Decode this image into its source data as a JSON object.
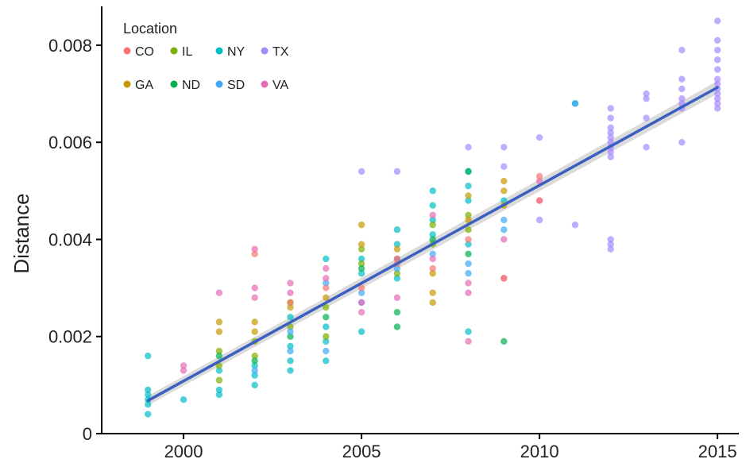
{
  "chart_data": {
    "type": "scatter",
    "title": "",
    "xlabel": "",
    "ylabel": "Distance",
    "xlim": [
      1997.7,
      2015.6
    ],
    "ylim": [
      0,
      0.0088
    ],
    "xticks": [
      2000,
      2005,
      2010,
      2015
    ],
    "xtick_labels": [
      "2000",
      "2005",
      "2010",
      "2015"
    ],
    "yticks": [
      0,
      0.002,
      0.004,
      0.006,
      0.008
    ],
    "ytick_labels": [
      "0",
      "0.002",
      "0.004",
      "0.006",
      "0.008"
    ],
    "grid": false,
    "legend": {
      "title": "Location",
      "placement": "top-left",
      "entries": [
        {
          "name": "CO",
          "color": "#F8766D"
        },
        {
          "name": "IL",
          "color": "#7CAE00"
        },
        {
          "name": "NY",
          "color": "#00BFC4"
        },
        {
          "name": "TX",
          "color": "#A58AFF"
        },
        {
          "name": "GA",
          "color": "#C49A00"
        },
        {
          "name": "ND",
          "color": "#00B050"
        },
        {
          "name": "SD",
          "color": "#3FA9F5"
        },
        {
          "name": "VA",
          "color": "#E76BB4"
        }
      ]
    },
    "trend_line": {
      "x": [
        1999,
        2015
      ],
      "y": [
        0.00068,
        0.00713
      ],
      "color": "#3a5fc1",
      "ci_color": "#cfcfcf"
    },
    "series": [
      {
        "name": "NY",
        "color": "#00BFC4",
        "points": [
          [
            1999,
            0.0016
          ],
          [
            1999,
            0.0009
          ],
          [
            1999,
            0.0008
          ],
          [
            1999,
            0.0007
          ],
          [
            1999,
            0.0006
          ],
          [
            1999,
            0.0004
          ],
          [
            2000,
            0.0007
          ],
          [
            2001,
            0.0013
          ],
          [
            2001,
            0.0009
          ],
          [
            2001,
            0.0008
          ],
          [
            2002,
            0.0014
          ],
          [
            2002,
            0.0012
          ],
          [
            2002,
            0.001
          ],
          [
            2003,
            0.0018
          ],
          [
            2003,
            0.0015
          ],
          [
            2003,
            0.0013
          ],
          [
            2003,
            0.0024
          ],
          [
            2004,
            0.0036
          ],
          [
            2004,
            0.0022
          ],
          [
            2004,
            0.0019
          ],
          [
            2004,
            0.0015
          ],
          [
            2005,
            0.0036
          ],
          [
            2005,
            0.0033
          ],
          [
            2005,
            0.0021
          ],
          [
            2006,
            0.0042
          ],
          [
            2006,
            0.0039
          ],
          [
            2006,
            0.0032
          ],
          [
            2007,
            0.005
          ],
          [
            2007,
            0.0047
          ],
          [
            2007,
            0.0044
          ],
          [
            2007,
            0.0041
          ],
          [
            2008,
            0.0054
          ],
          [
            2008,
            0.0051
          ],
          [
            2008,
            0.0048
          ],
          [
            2008,
            0.0039
          ],
          [
            2008,
            0.0021
          ],
          [
            2009,
            0.0048
          ],
          [
            2011,
            0.0068
          ]
        ]
      },
      {
        "name": "IL",
        "color": "#7CAE00",
        "points": [
          [
            2001,
            0.0017
          ],
          [
            2001,
            0.0014
          ],
          [
            2001,
            0.0011
          ],
          [
            2002,
            0.0019
          ],
          [
            2002,
            0.0016
          ],
          [
            2003,
            0.0027
          ],
          [
            2003,
            0.0022
          ],
          [
            2004,
            0.0026
          ],
          [
            2004,
            0.002
          ],
          [
            2005,
            0.0038
          ],
          [
            2005,
            0.0035
          ],
          [
            2006,
            0.0036
          ],
          [
            2006,
            0.0033
          ],
          [
            2007,
            0.0043
          ],
          [
            2007,
            0.0039
          ],
          [
            2008,
            0.0045
          ],
          [
            2008,
            0.0042
          ]
        ]
      },
      {
        "name": "GA",
        "color": "#C49A00",
        "points": [
          [
            2001,
            0.0023
          ],
          [
            2001,
            0.0021
          ],
          [
            2002,
            0.0023
          ],
          [
            2002,
            0.0021
          ],
          [
            2003,
            0.0026
          ],
          [
            2004,
            0.0028
          ],
          [
            2005,
            0.0043
          ],
          [
            2005,
            0.0039
          ],
          [
            2006,
            0.0038
          ],
          [
            2007,
            0.0033
          ],
          [
            2007,
            0.0029
          ],
          [
            2007,
            0.0027
          ],
          [
            2008,
            0.0049
          ],
          [
            2008,
            0.0044
          ],
          [
            2009,
            0.0052
          ],
          [
            2009,
            0.005
          ],
          [
            2009,
            0.0047
          ]
        ]
      },
      {
        "name": "ND",
        "color": "#00B050",
        "points": [
          [
            2001,
            0.0016
          ],
          [
            2002,
            0.0015
          ],
          [
            2003,
            0.002
          ],
          [
            2004,
            0.0024
          ],
          [
            2005,
            0.0034
          ],
          [
            2006,
            0.0025
          ],
          [
            2006,
            0.0022
          ],
          [
            2007,
            0.004
          ],
          [
            2008,
            0.0054
          ],
          [
            2008,
            0.0037
          ],
          [
            2009,
            0.0019
          ]
        ]
      },
      {
        "name": "SD",
        "color": "#3FA9F5",
        "points": [
          [
            2002,
            0.0013
          ],
          [
            2003,
            0.0021
          ],
          [
            2003,
            0.0017
          ],
          [
            2004,
            0.0031
          ],
          [
            2004,
            0.0017
          ],
          [
            2005,
            0.0029
          ],
          [
            2005,
            0.0027
          ],
          [
            2006,
            0.0034
          ],
          [
            2007,
            0.0037
          ],
          [
            2008,
            0.0035
          ],
          [
            2008,
            0.0033
          ],
          [
            2009,
            0.0044
          ],
          [
            2009,
            0.0042
          ],
          [
            2011,
            0.0068
          ]
        ]
      },
      {
        "name": "VA",
        "color": "#E76BB4",
        "points": [
          [
            2000,
            0.0014
          ],
          [
            2000,
            0.0013
          ],
          [
            2001,
            0.0029
          ],
          [
            2002,
            0.0038
          ],
          [
            2002,
            0.003
          ],
          [
            2002,
            0.0028
          ],
          [
            2003,
            0.0031
          ],
          [
            2003,
            0.0029
          ],
          [
            2004,
            0.0034
          ],
          [
            2004,
            0.0032
          ],
          [
            2005,
            0.0027
          ],
          [
            2005,
            0.0025
          ],
          [
            2006,
            0.0036
          ],
          [
            2006,
            0.0028
          ],
          [
            2007,
            0.0045
          ],
          [
            2007,
            0.0036
          ],
          [
            2008,
            0.0031
          ],
          [
            2008,
            0.0029
          ],
          [
            2008,
            0.0019
          ],
          [
            2009,
            0.004
          ],
          [
            2009,
            0.0032
          ],
          [
            2010,
            0.0048
          ],
          [
            2010,
            0.0052
          ]
        ]
      },
      {
        "name": "CO",
        "color": "#F8766D",
        "points": [
          [
            2002,
            0.0037
          ],
          [
            2003,
            0.0027
          ],
          [
            2004,
            0.003
          ],
          [
            2005,
            0.003
          ],
          [
            2006,
            0.0035
          ],
          [
            2007,
            0.0034
          ],
          [
            2008,
            0.004
          ],
          [
            2009,
            0.0032
          ],
          [
            2010,
            0.0048
          ],
          [
            2010,
            0.0053
          ]
        ]
      },
      {
        "name": "TX",
        "color": "#A58AFF",
        "points": [
          [
            2005,
            0.0054
          ],
          [
            2006,
            0.0054
          ],
          [
            2008,
            0.0059
          ],
          [
            2009,
            0.0059
          ],
          [
            2009,
            0.0055
          ],
          [
            2010,
            0.0061
          ],
          [
            2010,
            0.0044
          ],
          [
            2011,
            0.0043
          ],
          [
            2012,
            0.0067
          ],
          [
            2012,
            0.0065
          ],
          [
            2012,
            0.0063
          ],
          [
            2012,
            0.0062
          ],
          [
            2012,
            0.0061
          ],
          [
            2012,
            0.006
          ],
          [
            2012,
            0.0059
          ],
          [
            2012,
            0.0058
          ],
          [
            2012,
            0.0057
          ],
          [
            2012,
            0.004
          ],
          [
            2012,
            0.0039
          ],
          [
            2012,
            0.0038
          ],
          [
            2013,
            0.007
          ],
          [
            2013,
            0.0069
          ],
          [
            2013,
            0.0065
          ],
          [
            2013,
            0.0059
          ],
          [
            2014,
            0.0079
          ],
          [
            2014,
            0.0073
          ],
          [
            2014,
            0.0071
          ],
          [
            2014,
            0.0069
          ],
          [
            2014,
            0.0068
          ],
          [
            2014,
            0.0067
          ],
          [
            2014,
            0.006
          ],
          [
            2015,
            0.0085
          ],
          [
            2015,
            0.0081
          ],
          [
            2015,
            0.0079
          ],
          [
            2015,
            0.0077
          ],
          [
            2015,
            0.0075
          ],
          [
            2015,
            0.0073
          ],
          [
            2015,
            0.0072
          ],
          [
            2015,
            0.0071
          ],
          [
            2015,
            0.007
          ],
          [
            2015,
            0.0069
          ],
          [
            2015,
            0.0068
          ],
          [
            2015,
            0.0067
          ]
        ]
      }
    ]
  }
}
